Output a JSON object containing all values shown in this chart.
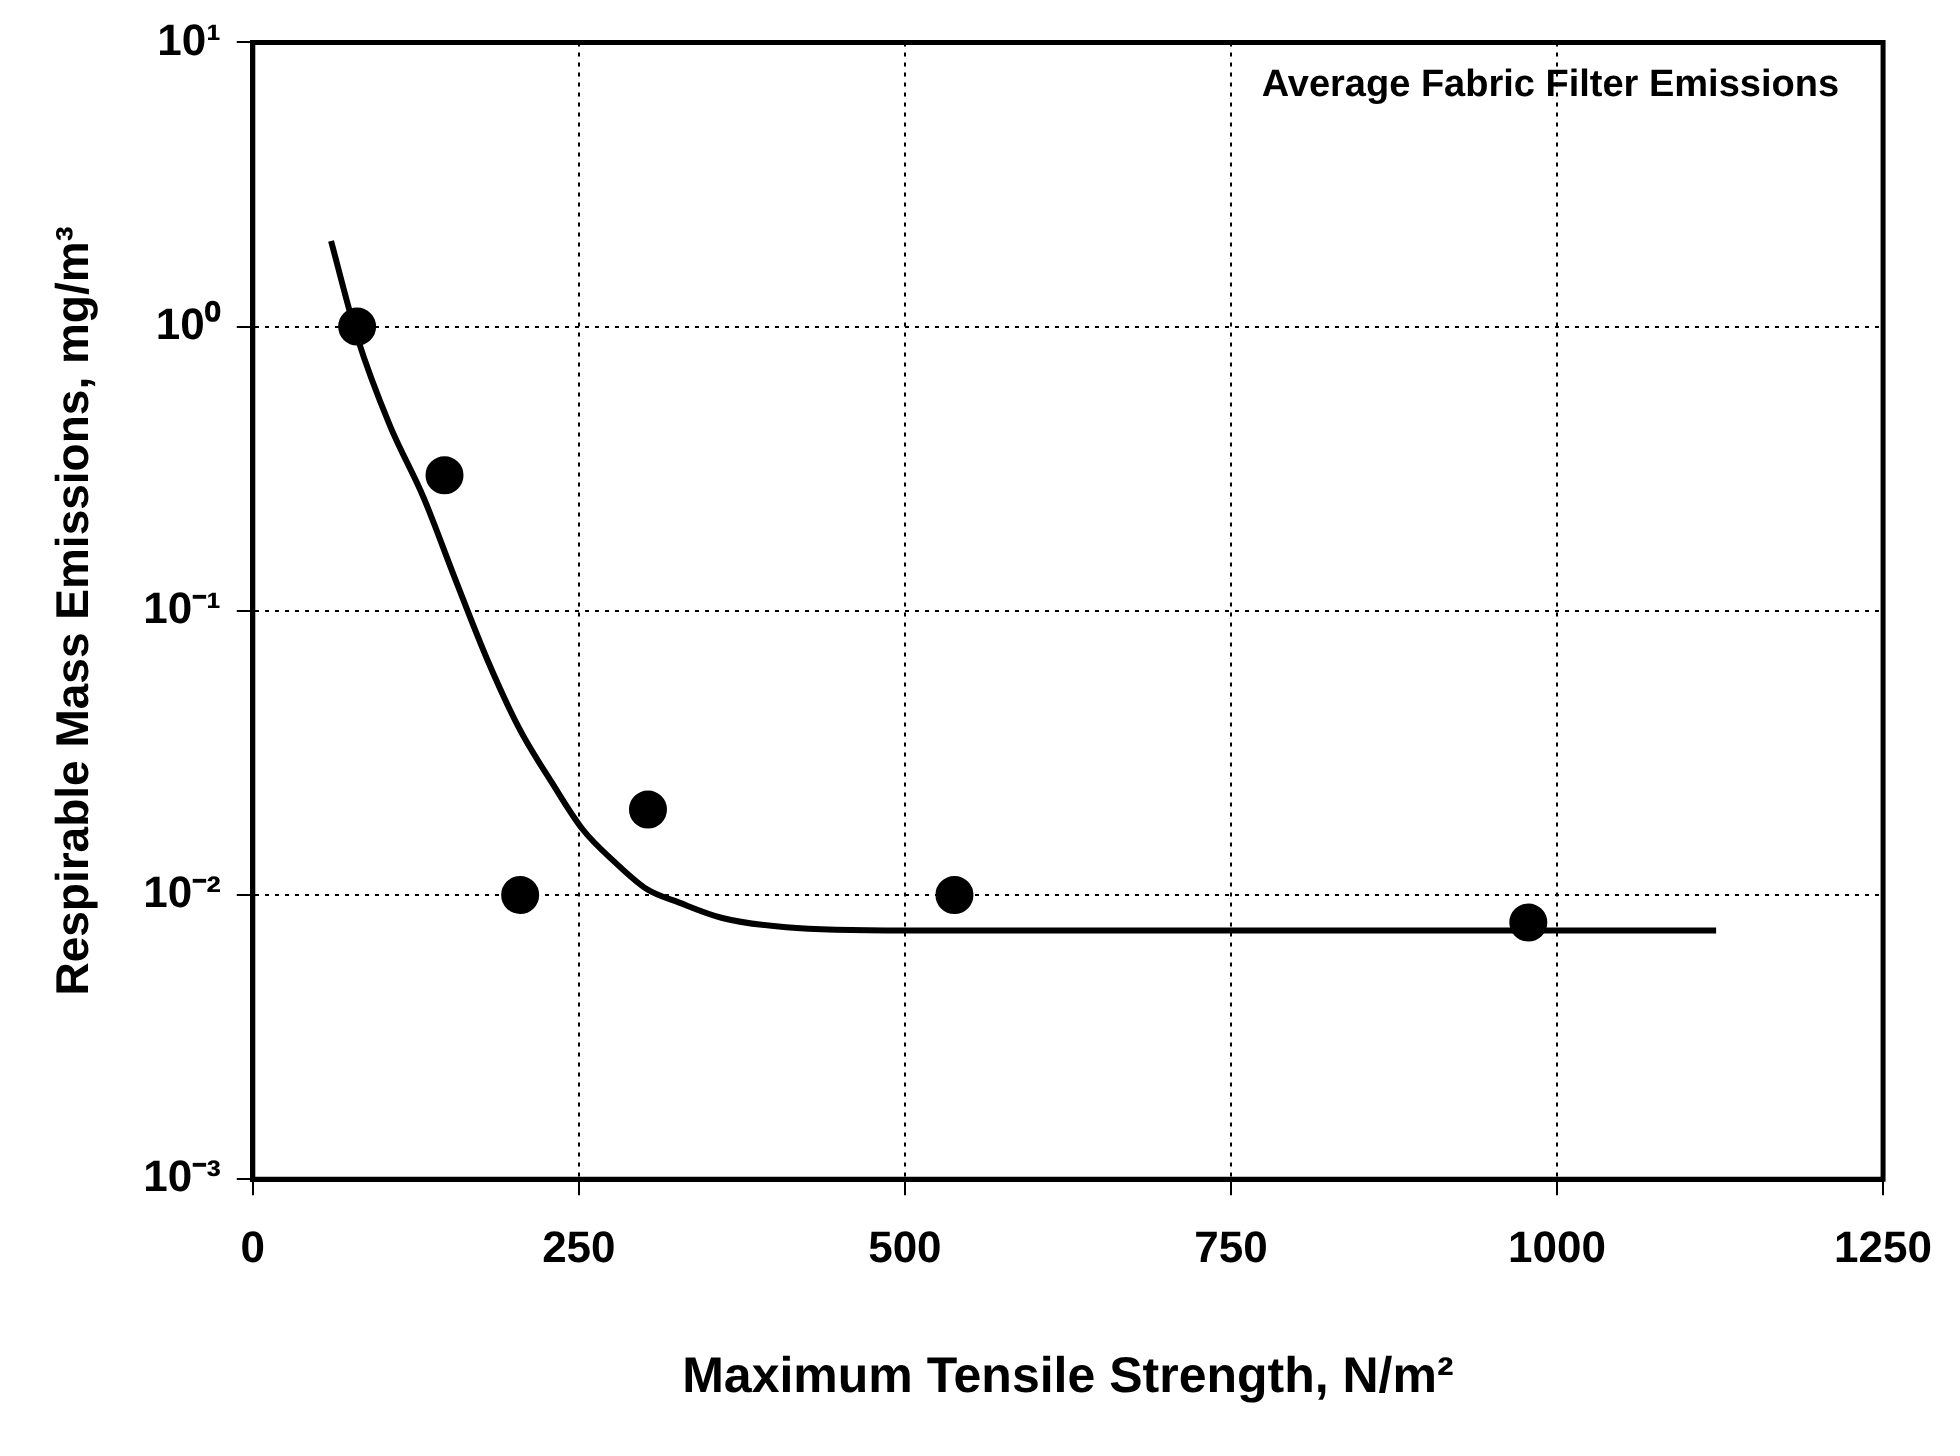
{
  "chart_data": {
    "type": "scatter",
    "xlabel": "Maximum Tensile Strength, N/m²",
    "ylabel": "Respirable Mass Emissions, mg/m³",
    "annotations": [
      "Average Fabric Filter Emissions"
    ],
    "log": "y",
    "grid": true,
    "xlim": [
      0,
      1250
    ],
    "xticks": [
      0,
      250,
      500,
      750,
      1000,
      1250
    ],
    "ylim": [
      0.001,
      10
    ],
    "yticks": [
      {
        "value": 0.001,
        "label": "10⁻³"
      },
      {
        "value": 0.01,
        "label": "10⁻²"
      },
      {
        "value": 0.1,
        "label": "10⁻¹"
      },
      {
        "value": 1,
        "label": "10⁰"
      },
      {
        "value": 10,
        "label": "10¹"
      }
    ],
    "series": [
      {
        "marker": "circle",
        "color": "#000000",
        "x": [
          80,
          147,
          205,
          303,
          538,
          978
        ],
        "values": [
          1.0,
          0.3,
          0.01,
          0.02,
          0.01,
          0.008
        ]
      },
      {
        "type": "line",
        "marker": "none",
        "color": "#000000",
        "x": [
          60,
          80,
          105,
          131,
          155,
          180,
          205,
          229,
          253,
          278,
          302,
          327,
          360,
          409,
          500,
          700,
          900,
          1122
        ],
        "values": [
          2.0,
          0.92,
          0.45,
          0.25,
          0.13,
          0.067,
          0.038,
          0.025,
          0.017,
          0.013,
          0.0105,
          0.0094,
          0.0083,
          0.0077,
          0.0075,
          0.0075,
          0.0075,
          0.0075
        ]
      }
    ]
  }
}
